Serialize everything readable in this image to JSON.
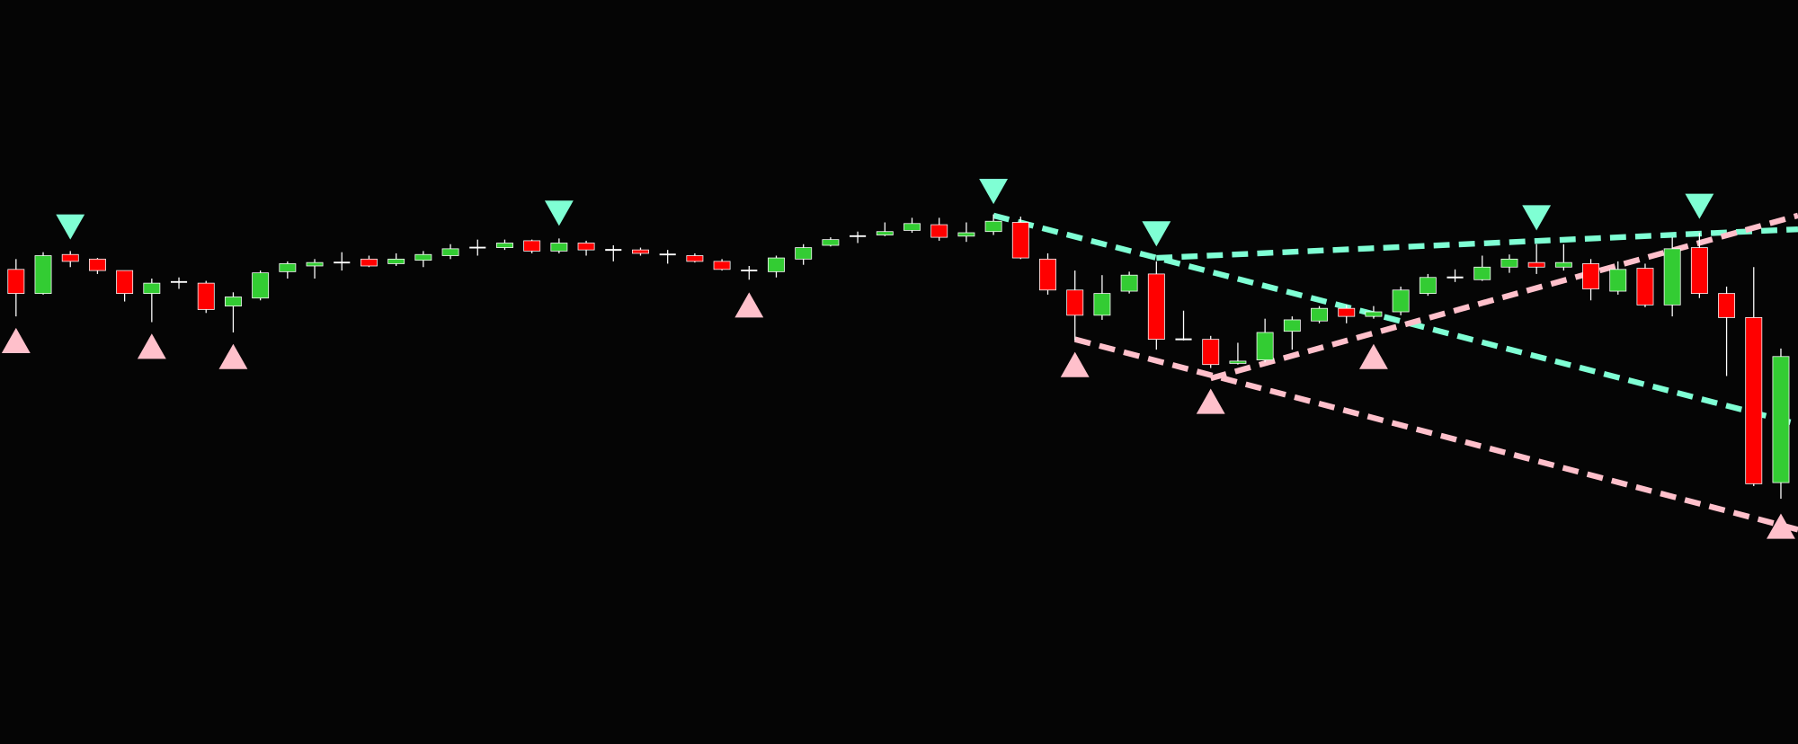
{
  "chart_data": {
    "type": "candlestick",
    "xlim": [
      -0.59,
      65.63
    ],
    "ylim": [
      0,
      649
    ],
    "up_color": "#33cc33",
    "down_color": "#ff0000",
    "doji_color": "#ffffff",
    "open": [
      414,
      393,
      427,
      423,
      413,
      393,
      403,
      402,
      382,
      389,
      412,
      417,
      420,
      423,
      419,
      422,
      426,
      433,
      433,
      439,
      430,
      437,
      431,
      431,
      427,
      426,
      421,
      413,
      412,
      423,
      435,
      443,
      444,
      448,
      453,
      443,
      447,
      455,
      423,
      396,
      374,
      395,
      410,
      353,
      353,
      332,
      335,
      360,
      369,
      380,
      373,
      377,
      393,
      407,
      405,
      416,
      420,
      416,
      419,
      395,
      415,
      383,
      433,
      393,
      372,
      228
    ],
    "high": [
      423,
      429,
      430,
      424,
      413,
      406,
      407,
      404,
      394,
      413,
      421,
      423,
      429,
      426,
      428,
      430,
      436,
      440,
      440,
      440,
      441,
      439,
      435,
      433,
      431,
      428,
      423,
      417,
      426,
      436,
      442,
      447,
      455,
      459,
      459,
      455,
      462,
      460,
      428,
      413,
      409,
      412,
      421,
      378,
      356,
      350,
      371,
      373,
      382,
      383,
      382,
      399,
      410,
      414,
      426,
      427,
      436,
      436,
      423,
      421,
      419,
      442,
      446,
      399,
      416,
      345
    ],
    "low": [
      373,
      392,
      416,
      410,
      386,
      368,
      397,
      376,
      359,
      387,
      406,
      406,
      413,
      416,
      417,
      416,
      423,
      426,
      431,
      428,
      428,
      426,
      421,
      426,
      419,
      420,
      413,
      405,
      407,
      418,
      434,
      437,
      443,
      446,
      439,
      438,
      444,
      423,
      392,
      352,
      370,
      393,
      344,
      352,
      328,
      331,
      333,
      344,
      367,
      367,
      371,
      374,
      391,
      403,
      404,
      411,
      410,
      413,
      387,
      392,
      381,
      373,
      389,
      321,
      225,
      214
    ],
    "close": [
      393,
      426,
      421,
      413,
      393,
      402,
      403,
      379,
      390,
      411,
      419,
      420,
      420,
      417,
      423,
      427,
      432,
      433,
      437,
      430,
      437,
      431,
      431,
      428,
      427,
      421,
      414,
      413,
      424,
      433,
      440,
      443,
      447,
      454,
      442,
      446,
      456,
      424,
      396,
      374,
      393,
      409,
      353,
      353,
      331,
      334,
      359,
      370,
      380,
      373,
      377,
      396,
      407,
      407,
      416,
      423,
      416,
      420,
      397,
      414,
      383,
      432,
      393,
      372,
      227,
      338
    ],
    "signals": [
      {
        "direction": "down",
        "color": "#7fffd4",
        "x": [
          2,
          20,
          36,
          42,
          56,
          62
        ],
        "values": [
          451,
          463,
          482,
          445,
          459,
          469
        ]
      },
      {
        "direction": "up",
        "color": "#ffc0cb",
        "x": [
          0,
          5,
          8,
          27,
          39,
          44,
          50,
          65
        ],
        "values": [
          352,
          347,
          338,
          383,
          331,
          299,
          338,
          190
        ]
      }
    ],
    "trendlines": [
      {
        "color": "#7fffd4",
        "x": [
          36,
          65.63
        ],
        "values": [
          461,
          279
        ]
      },
      {
        "color": "#7fffd4",
        "x": [
          42,
          65.63
        ],
        "values": [
          424,
          449
        ]
      },
      {
        "color": "#ffc0cb",
        "x": [
          39,
          65.63
        ],
        "values": [
          353,
          187
        ]
      },
      {
        "color": "#ffc0cb",
        "x": [
          44,
          65.63
        ],
        "values": [
          319,
          461
        ]
      }
    ]
  }
}
